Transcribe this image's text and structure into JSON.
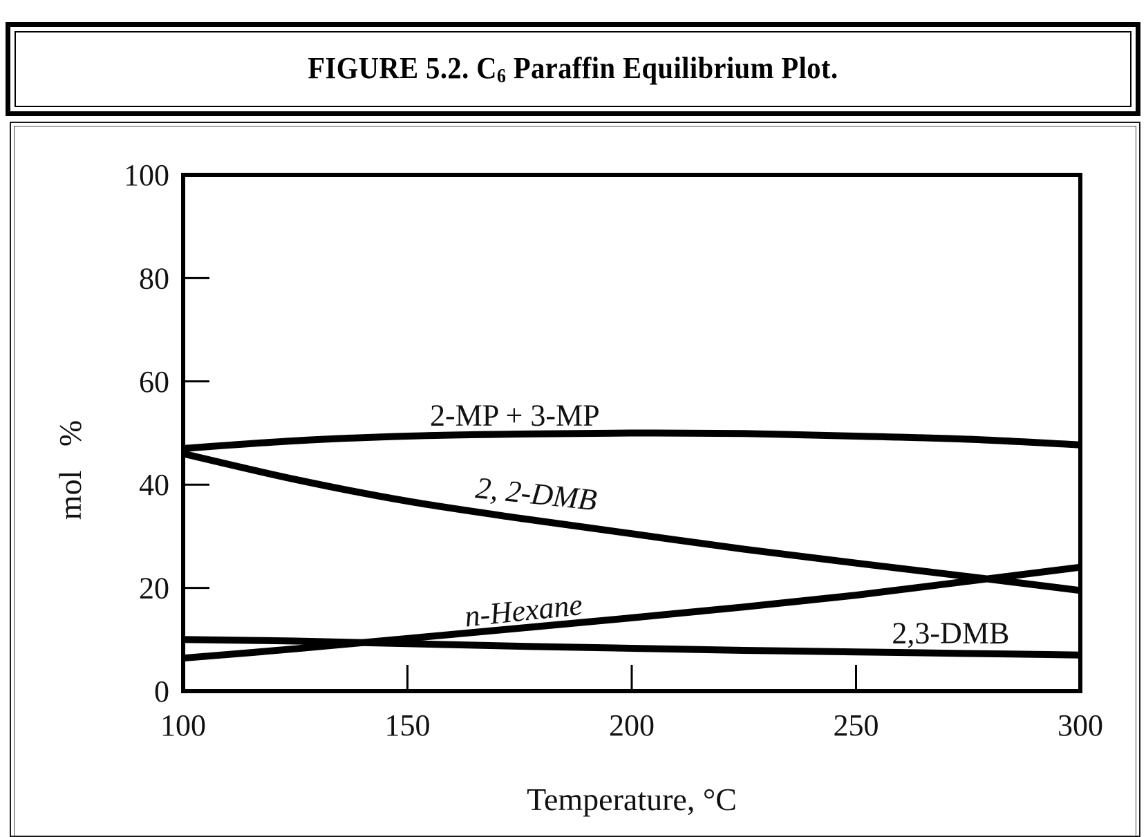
{
  "title": {
    "prefix": "FIGURE 5.2. C",
    "subscript": "6",
    "suffix": " Paraffin Equilibrium Plot."
  },
  "chart_data": {
    "type": "line",
    "xlabel": "Temperature, °C",
    "ylabel": "mol   %",
    "xlim": [
      100,
      300
    ],
    "ylim": [
      0,
      100
    ],
    "x_ticks": [
      100,
      150,
      200,
      250,
      300
    ],
    "y_ticks": [
      0,
      20,
      40,
      60,
      80,
      100
    ],
    "grid": false,
    "series": [
      {
        "name": "2-MP + 3-MP",
        "x": [
          100,
          125,
          150,
          175,
          200,
          225,
          250,
          275,
          300
        ],
        "y": [
          47,
          48.5,
          49.4,
          49.8,
          50,
          49.9,
          49.4,
          48.8,
          47.7
        ]
      },
      {
        "name": "2, 2-DMB",
        "x": [
          100,
          125,
          150,
          175,
          200,
          225,
          250,
          275,
          300
        ],
        "y": [
          46,
          41,
          36.8,
          33.5,
          30.5,
          27.5,
          24.8,
          22.2,
          19.5
        ]
      },
      {
        "name": "n-Hexane",
        "x": [
          100,
          125,
          150,
          175,
          200,
          225,
          250,
          275,
          300
        ],
        "y": [
          6.4,
          8.2,
          10.2,
          12.2,
          14.2,
          16.3,
          18.6,
          21.3,
          24
        ]
      },
      {
        "name": "2,3-DMB",
        "x": [
          100,
          125,
          150,
          175,
          200,
          225,
          250,
          275,
          300
        ],
        "y": [
          10,
          9.7,
          9.2,
          8.7,
          8.3,
          7.9,
          7.6,
          7.3,
          7
        ]
      }
    ]
  }
}
